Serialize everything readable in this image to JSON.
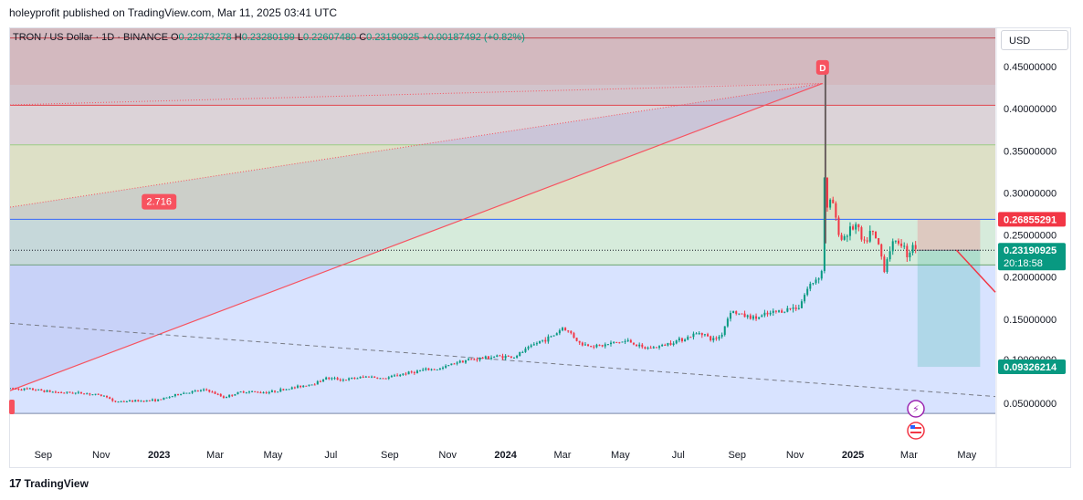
{
  "publisher_line": "holeyprofit published on TradingView.com, Mar 11, 2025 03:41 UTC",
  "ohlc": {
    "symbol": "TRON / US Dollar · 1D · BINANCE",
    "o_label": "O",
    "o": "0.22973278",
    "h_label": "H",
    "h": "0.23280199",
    "l_label": "L",
    "l": "0.22607480",
    "c_label": "C",
    "c": "0.23190925",
    "change": "+0.00187492 (+0.82%)"
  },
  "currency_button": "USD",
  "brand": {
    "logo_mark": "17",
    "name": "TradingView"
  },
  "colors": {
    "up": "#089981",
    "down": "#f23645",
    "fib_line": "#f7525f",
    "blue_line": "#2962ff",
    "accent_label": "#f7525f"
  },
  "chart_data": {
    "type": "candlestick",
    "title": "TRON / US Dollar · 1D · BINANCE",
    "x_axis": {
      "type": "date",
      "range": [
        "2022-07-28",
        "2025-05-31"
      ],
      "tick_labels": [
        "Sep",
        "Nov",
        "2023",
        "Mar",
        "May",
        "Jul",
        "Sep",
        "Nov",
        "2024",
        "Mar",
        "May",
        "Jul",
        "Sep",
        "Nov",
        "2025",
        "Mar",
        "May"
      ],
      "tick_dates": [
        "2022-09-01",
        "2022-11-01",
        "2023-01-01",
        "2023-03-01",
        "2023-05-01",
        "2023-07-01",
        "2023-09-01",
        "2023-11-01",
        "2024-01-01",
        "2024-03-01",
        "2024-05-01",
        "2024-07-01",
        "2024-09-01",
        "2024-11-01",
        "2025-01-01",
        "2025-03-01",
        "2025-05-01"
      ],
      "bold_ticks": [
        "2023",
        "2024",
        "2025"
      ]
    },
    "y_axis": {
      "range": [
        0.0,
        0.5
      ],
      "tick_values": [
        0.05,
        0.15,
        0.2,
        0.25,
        0.3,
        0.35,
        0.4,
        0.45
      ],
      "tick_labels": [
        "0.05000000",
        "0.15000000",
        "0.20000000",
        "0.25000000",
        "0.30000000",
        "0.35000000",
        "0.40000000",
        "0.45000000"
      ],
      "partially_hidden_tick": "0.10000000"
    },
    "price_series": [
      [
        "2022-07-28",
        0.0675
      ],
      [
        "2022-08-20",
        0.0665
      ],
      [
        "2022-09-15",
        0.063
      ],
      [
        "2022-10-15",
        0.062
      ],
      [
        "2022-11-08",
        0.058
      ],
      [
        "2022-11-12",
        0.052
      ],
      [
        "2022-12-15",
        0.053
      ],
      [
        "2023-01-01",
        0.054
      ],
      [
        "2023-01-25",
        0.062
      ],
      [
        "2023-02-20",
        0.066
      ],
      [
        "2023-03-10",
        0.057
      ],
      [
        "2023-03-30",
        0.064
      ],
      [
        "2023-04-25",
        0.063
      ],
      [
        "2023-05-20",
        0.068
      ],
      [
        "2023-06-15",
        0.074
      ],
      [
        "2023-06-25",
        0.08
      ],
      [
        "2023-07-15",
        0.078
      ],
      [
        "2023-08-10",
        0.082
      ],
      [
        "2023-08-25",
        0.079
      ],
      [
        "2023-09-15",
        0.085
      ],
      [
        "2023-10-10",
        0.09
      ],
      [
        "2023-10-25",
        0.091
      ],
      [
        "2023-11-10",
        0.099
      ],
      [
        "2023-11-25",
        0.102
      ],
      [
        "2023-12-10",
        0.104
      ],
      [
        "2023-12-25",
        0.106
      ],
      [
        "2024-01-10",
        0.105
      ],
      [
        "2024-02-05",
        0.123
      ],
      [
        "2024-02-20",
        0.13
      ],
      [
        "2024-03-01",
        0.14
      ],
      [
        "2024-03-10",
        0.133
      ],
      [
        "2024-03-20",
        0.12
      ],
      [
        "2024-04-10",
        0.118
      ],
      [
        "2024-04-25",
        0.122
      ],
      [
        "2024-05-10",
        0.124
      ],
      [
        "2024-05-25",
        0.115
      ],
      [
        "2024-06-10",
        0.117
      ],
      [
        "2024-06-25",
        0.123
      ],
      [
        "2024-07-10",
        0.128
      ],
      [
        "2024-07-25",
        0.135
      ],
      [
        "2024-08-05",
        0.125
      ],
      [
        "2024-08-15",
        0.13
      ],
      [
        "2024-08-25",
        0.16
      ],
      [
        "2024-09-05",
        0.155
      ],
      [
        "2024-09-20",
        0.151
      ],
      [
        "2024-10-10",
        0.158
      ],
      [
        "2024-10-25",
        0.162
      ],
      [
        "2024-11-05",
        0.165
      ],
      [
        "2024-11-15",
        0.188
      ],
      [
        "2024-11-25",
        0.2
      ],
      [
        "2024-12-01",
        0.21
      ],
      [
        "2024-12-03",
        0.43
      ],
      [
        "2024-12-05",
        0.28
      ],
      [
        "2024-12-10",
        0.295
      ],
      [
        "2024-12-15",
        0.26
      ],
      [
        "2024-12-20",
        0.245
      ],
      [
        "2024-12-28",
        0.255
      ],
      [
        "2025-01-05",
        0.262
      ],
      [
        "2025-01-12",
        0.236
      ],
      [
        "2025-01-20",
        0.255
      ],
      [
        "2025-01-28",
        0.238
      ],
      [
        "2025-02-03",
        0.21
      ],
      [
        "2025-02-10",
        0.238
      ],
      [
        "2025-02-20",
        0.243
      ],
      [
        "2025-02-28",
        0.225
      ],
      [
        "2025-03-05",
        0.24
      ],
      [
        "2025-03-10",
        0.232
      ]
    ],
    "ath_spike": {
      "date": "2024-12-03",
      "high": 0.449
    },
    "fib_levels": [
      0.5,
      0.404,
      0.357,
      0.2686,
      0.2144,
      0.038
    ],
    "current_price": {
      "value": 0.23190925,
      "label": "0.23190925",
      "countdown": "20:18:58"
    },
    "horizontal_line_label": "0.26855291",
    "short_position": {
      "entry": 0.2319,
      "stop": 0.2686,
      "target": 0.0933,
      "start": "2025-03-10",
      "end": "2025-05-15",
      "target_label": "0.09326214"
    },
    "projection_line": [
      [
        "2025-04-20",
        0.232
      ],
      [
        "2025-05-31",
        0.182
      ]
    ],
    "wedge": {
      "apex": [
        "2024-11-30",
        0.43
      ],
      "upper_start": [
        "2022-07-28",
        0.283
      ],
      "lower_start": [
        "2022-07-28",
        0.065
      ],
      "label": "2.716",
      "label_anchor": [
        "2023-01-01",
        0.29
      ]
    },
    "pattern_point_label": "D",
    "dashed_trendline": [
      [
        "2022-07-28",
        0.145
      ],
      [
        "2025-05-31",
        0.058
      ]
    ],
    "currency": "USD"
  }
}
